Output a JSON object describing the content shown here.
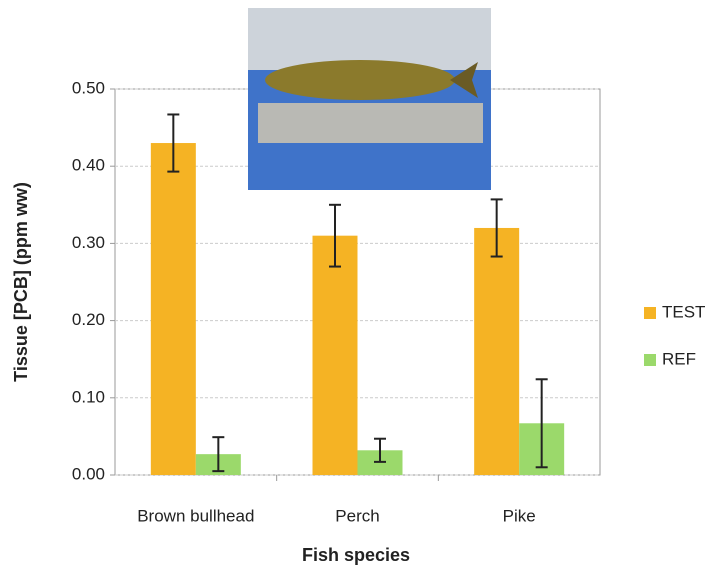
{
  "chart_data": {
    "type": "bar",
    "x_label": "Fish species",
    "y_label": "Tissue [PCB] (ppm ww)",
    "categories": [
      "Brown bullhead",
      "Perch",
      "Pike"
    ],
    "series": [
      {
        "name": "TEST",
        "color": "#f5b324",
        "values": [
          0.43,
          0.31,
          0.32
        ],
        "errors": [
          0.037,
          0.04,
          0.037
        ]
      },
      {
        "name": "REF",
        "color": "#9bd96b",
        "values": [
          0.027,
          0.032,
          0.067
        ],
        "errors": [
          0.022,
          0.015,
          0.057
        ]
      }
    ],
    "ylim": [
      0,
      0.5
    ],
    "yticks": [
      {
        "value": 0,
        "label": "0.00"
      },
      {
        "value": 0.1,
        "label": "0.10"
      },
      {
        "value": 0.2,
        "label": "0.20"
      },
      {
        "value": 0.3,
        "label": "0.30"
      },
      {
        "value": 0.4,
        "label": "0.40"
      },
      {
        "value": 0.5,
        "label": "0.50"
      }
    ],
    "grid": true,
    "legend": "right"
  }
}
